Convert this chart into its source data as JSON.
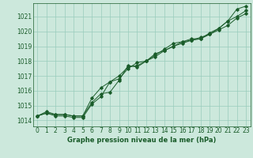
{
  "title": "Graphe pression niveau de la mer (hPa)",
  "background_color": "#cce8dc",
  "grid_color": "#99ccbb",
  "line_color": "#1a5c2a",
  "xlim": [
    -0.5,
    23.5
  ],
  "ylim": [
    1013.6,
    1021.9
  ],
  "yticks": [
    1014,
    1015,
    1016,
    1017,
    1018,
    1019,
    1020,
    1021
  ],
  "xticks": [
    0,
    1,
    2,
    3,
    4,
    5,
    6,
    7,
    8,
    9,
    10,
    11,
    12,
    13,
    14,
    15,
    16,
    17,
    18,
    19,
    20,
    21,
    22,
    23
  ],
  "series": [
    [
      1014.3,
      1014.6,
      1014.4,
      1014.4,
      1014.3,
      1014.3,
      1015.2,
      1015.8,
      1015.9,
      1016.7,
      1017.7,
      1017.6,
      1018.0,
      1018.4,
      1018.8,
      1019.2,
      1019.3,
      1019.4,
      1019.5,
      1019.9,
      1020.2,
      1020.7,
      1021.5,
      1021.7
    ],
    [
      1014.3,
      1014.5,
      1014.4,
      1014.4,
      1014.3,
      1014.3,
      1015.5,
      1016.2,
      1016.6,
      1017.0,
      1017.6,
      1017.7,
      1018.0,
      1018.3,
      1018.7,
      1019.0,
      1019.3,
      1019.5,
      1019.5,
      1019.8,
      1020.2,
      1020.7,
      1021.0,
      1021.4
    ],
    [
      1014.3,
      1014.5,
      1014.3,
      1014.3,
      1014.2,
      1014.2,
      1015.1,
      1015.6,
      1016.6,
      1016.8,
      1017.5,
      1017.9,
      1018.0,
      1018.5,
      1018.7,
      1019.0,
      1019.2,
      1019.4,
      1019.6,
      1019.8,
      1020.1,
      1020.4,
      1020.9,
      1021.2
    ]
  ],
  "title_fontsize": 6.0,
  "tick_fontsize": 5.5
}
